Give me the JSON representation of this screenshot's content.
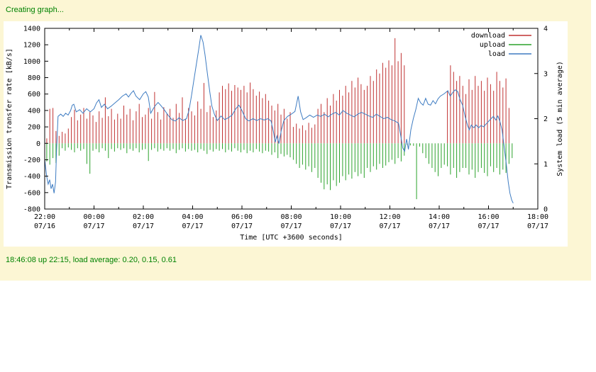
{
  "page": {
    "creating_text": "Creating graph...",
    "status_text": "18:46:08 up 22:15, load average: 0.20, 0.15, 0.61",
    "colors": {
      "panel_bg": "#FCF6D4",
      "text_green": "#008200",
      "axis": "#000000",
      "plot_bg": "#FFFFFF"
    }
  },
  "chart_data": {
    "type": "bar+line",
    "title": "",
    "xlabel": "Time [UTC +3600 seconds]",
    "ylabel_left": "Transmission transfer rate [kB/s]",
    "ylabel_right": "System load (5 min average)",
    "ylim_left": [
      -800,
      1400
    ],
    "ylim_right": [
      0,
      4
    ],
    "y_ticks_left": [
      -800,
      -600,
      -400,
      -200,
      0,
      200,
      400,
      600,
      800,
      1000,
      1200,
      1400
    ],
    "y_ticks_right": [
      0,
      1,
      2,
      3,
      4
    ],
    "x_hours_span": 20,
    "grid": false,
    "legend_position": "top-right-inside",
    "x_ticks": [
      {
        "hour": 0,
        "time": "22:00",
        "date": "07/16"
      },
      {
        "hour": 2,
        "time": "00:00",
        "date": "07/17"
      },
      {
        "hour": 4,
        "time": "02:00",
        "date": "07/17"
      },
      {
        "hour": 6,
        "time": "04:00",
        "date": "07/17"
      },
      {
        "hour": 8,
        "time": "06:00",
        "date": "07/17"
      },
      {
        "hour": 10,
        "time": "08:00",
        "date": "07/17"
      },
      {
        "hour": 12,
        "time": "10:00",
        "date": "07/17"
      },
      {
        "hour": 14,
        "time": "12:00",
        "date": "07/17"
      },
      {
        "hour": 16,
        "time": "14:00",
        "date": "07/17"
      },
      {
        "hour": 18,
        "time": "16:00",
        "date": "07/17"
      },
      {
        "hour": 20,
        "time": "18:00",
        "date": "07/17"
      }
    ],
    "x_minor_ticks_every_hours": 1,
    "legend": [
      {
        "name": "download",
        "color": "#C03232"
      },
      {
        "name": "upload",
        "color": "#2CA22C"
      },
      {
        "name": "load",
        "color": "#3E7CC2"
      }
    ],
    "series": {
      "download_kBs": {
        "axis": "left",
        "style": "impulses",
        "t0": 0.083,
        "dt": 0.125,
        "values": [
          60,
          420,
          430,
          150,
          90,
          140,
          120,
          180,
          320,
          410,
          280,
          350,
          430,
          300,
          380,
          340,
          260,
          390,
          310,
          560,
          330,
          420,
          290,
          360,
          300,
          460,
          350,
          420,
          280,
          390,
          480,
          320,
          350,
          430,
          300,
          625,
          380,
          290,
          440,
          360,
          420,
          310,
          480,
          370,
          560,
          300,
          430,
          390,
          340,
          510,
          420,
          735,
          380,
          460,
          320,
          400,
          620,
          700,
          660,
          730,
          640,
          710,
          680,
          650,
          700,
          620,
          740,
          660,
          580,
          630,
          550,
          600,
          520,
          460,
          400,
          480,
          350,
          420,
          300,
          380,
          200,
          240,
          180,
          220,
          160,
          250,
          190,
          230,
          420,
          480,
          380,
          550,
          460,
          600,
          520,
          650,
          580,
          700,
          620,
          760,
          680,
          800,
          720,
          650,
          700,
          820,
          760,
          900,
          850,
          980,
          920,
          1010,
          950,
          1280,
          1000,
          1100,
          950,
          null,
          null,
          null,
          null,
          null,
          null,
          null,
          null,
          null,
          null,
          null,
          null,
          null,
          640,
          950,
          870,
          760,
          820,
          700,
          600,
          780,
          650,
          820,
          700,
          760,
          640,
          800,
          720,
          640,
          870,
          760,
          680,
          790,
          430
        ]
      },
      "upload_kBs": {
        "axis": "left",
        "style": "impulses",
        "t0": 0.083,
        "dt": 0.125,
        "values": [
          -220,
          -260,
          -180,
          -240,
          -150,
          -60,
          -90,
          -50,
          -80,
          -110,
          -60,
          -90,
          -70,
          -250,
          -370,
          -90,
          -70,
          -110,
          -60,
          -90,
          -180,
          -70,
          -100,
          -60,
          -80,
          -60,
          -120,
          -70,
          -90,
          -60,
          -110,
          -80,
          -70,
          -215,
          -80,
          -60,
          -100,
          -70,
          -90,
          -60,
          -90,
          -70,
          -120,
          -80,
          -60,
          -100,
          -70,
          -90,
          -80,
          -110,
          -70,
          -90,
          -130,
          -80,
          -100,
          -70,
          -90,
          -70,
          -110,
          -80,
          -100,
          -60,
          -90,
          -110,
          -80,
          -120,
          -90,
          -110,
          -70,
          -100,
          -120,
          -90,
          -100,
          -140,
          -110,
          -180,
          -130,
          -160,
          -140,
          -170,
          -200,
          -250,
          -300,
          -260,
          -320,
          -280,
          -350,
          -300,
          -420,
          -480,
          -560,
          -500,
          -570,
          -450,
          -520,
          -480,
          -400,
          -450,
          -380,
          -430,
          -350,
          -400,
          -370,
          -420,
          -300,
          -350,
          -280,
          -320,
          -250,
          -300,
          -270,
          -230,
          -200,
          -250,
          -180,
          -220,
          -150,
          -20,
          -25,
          -30,
          -680,
          -40,
          -120,
          -180,
          -250,
          -300,
          -350,
          -400,
          -300,
          -260,
          -280,
          -380,
          -300,
          -420,
          -350,
          -300,
          -300,
          -380,
          -320,
          -420,
          -350,
          -300,
          -360,
          -400,
          -280,
          -350,
          -300,
          -380,
          -320,
          -360,
          -250,
          -180
        ]
      },
      "load_5min": {
        "axis": "right",
        "style": "line",
        "points": [
          [
            0,
            1.1
          ],
          [
            0.08,
            0.72
          ],
          [
            0.14,
            0.55
          ],
          [
            0.2,
            0.65
          ],
          [
            0.26,
            0.45
          ],
          [
            0.32,
            0.55
          ],
          [
            0.38,
            0.35
          ],
          [
            0.44,
            0.6
          ],
          [
            0.48,
            1.3
          ],
          [
            0.54,
            2.05
          ],
          [
            0.65,
            2.1
          ],
          [
            0.75,
            2.05
          ],
          [
            0.85,
            2.12
          ],
          [
            0.95,
            2.08
          ],
          [
            1.05,
            2.18
          ],
          [
            1.12,
            2.3
          ],
          [
            1.18,
            2.32
          ],
          [
            1.28,
            2.15
          ],
          [
            1.42,
            2.2
          ],
          [
            1.55,
            2.12
          ],
          [
            1.7,
            2.22
          ],
          [
            1.85,
            2.15
          ],
          [
            2.0,
            2.22
          ],
          [
            2.1,
            2.35
          ],
          [
            2.2,
            2.42
          ],
          [
            2.3,
            2.25
          ],
          [
            2.42,
            2.32
          ],
          [
            2.55,
            2.22
          ],
          [
            2.7,
            2.28
          ],
          [
            2.85,
            2.35
          ],
          [
            3.0,
            2.42
          ],
          [
            3.15,
            2.5
          ],
          [
            3.3,
            2.55
          ],
          [
            3.4,
            2.48
          ],
          [
            3.5,
            2.56
          ],
          [
            3.6,
            2.62
          ],
          [
            3.7,
            2.5
          ],
          [
            3.85,
            2.42
          ],
          [
            4.0,
            2.55
          ],
          [
            4.1,
            2.6
          ],
          [
            4.2,
            2.48
          ],
          [
            4.3,
            2.12
          ],
          [
            4.4,
            2.22
          ],
          [
            4.5,
            2.3
          ],
          [
            4.6,
            2.36
          ],
          [
            4.7,
            2.3
          ],
          [
            4.85,
            2.2
          ],
          [
            5.0,
            2.08
          ],
          [
            5.15,
            1.98
          ],
          [
            5.3,
            1.95
          ],
          [
            5.45,
            2.02
          ],
          [
            5.6,
            1.96
          ],
          [
            5.75,
            2.0
          ],
          [
            5.85,
            2.18
          ],
          [
            5.95,
            2.5
          ],
          [
            6.05,
            2.85
          ],
          [
            6.15,
            3.2
          ],
          [
            6.25,
            3.55
          ],
          [
            6.33,
            3.85
          ],
          [
            6.42,
            3.7
          ],
          [
            6.5,
            3.42
          ],
          [
            6.6,
            3.0
          ],
          [
            6.7,
            2.58
          ],
          [
            6.78,
            2.28
          ],
          [
            6.88,
            2.1
          ],
          [
            7.0,
            1.96
          ],
          [
            7.15,
            2.06
          ],
          [
            7.3,
            1.98
          ],
          [
            7.45,
            2.02
          ],
          [
            7.6,
            2.08
          ],
          [
            7.75,
            2.22
          ],
          [
            7.88,
            2.3
          ],
          [
            8.0,
            2.18
          ],
          [
            8.15,
            2.0
          ],
          [
            8.28,
            1.95
          ],
          [
            8.45,
            2.0
          ],
          [
            8.6,
            1.96
          ],
          [
            8.75,
            2.0
          ],
          [
            8.9,
            1.97
          ],
          [
            9.05,
            2.0
          ],
          [
            9.18,
            1.95
          ],
          [
            9.28,
            1.7
          ],
          [
            9.35,
            1.48
          ],
          [
            9.42,
            1.62
          ],
          [
            9.5,
            1.45
          ],
          [
            9.6,
            1.75
          ],
          [
            9.7,
            1.96
          ],
          [
            9.85,
            2.05
          ],
          [
            10.0,
            2.1
          ],
          [
            10.15,
            2.16
          ],
          [
            10.28,
            2.5
          ],
          [
            10.38,
            2.15
          ],
          [
            10.48,
            1.98
          ],
          [
            10.6,
            2.02
          ],
          [
            10.75,
            2.08
          ],
          [
            10.9,
            2.03
          ],
          [
            11.05,
            2.08
          ],
          [
            11.2,
            2.05
          ],
          [
            11.35,
            2.1
          ],
          [
            11.5,
            2.04
          ],
          [
            11.65,
            2.1
          ],
          [
            11.8,
            2.14
          ],
          [
            11.95,
            2.08
          ],
          [
            12.1,
            2.18
          ],
          [
            12.25,
            2.12
          ],
          [
            12.4,
            2.08
          ],
          [
            12.55,
            2.04
          ],
          [
            12.7,
            2.1
          ],
          [
            12.85,
            2.14
          ],
          [
            13.0,
            2.1
          ],
          [
            13.15,
            2.06
          ],
          [
            13.3,
            2.03
          ],
          [
            13.45,
            2.1
          ],
          [
            13.6,
            2.05
          ],
          [
            13.75,
            2.0
          ],
          [
            13.9,
            2.03
          ],
          [
            14.05,
            1.98
          ],
          [
            14.2,
            1.95
          ],
          [
            14.35,
            1.9
          ],
          [
            14.45,
            1.6
          ],
          [
            14.52,
            1.35
          ],
          [
            14.6,
            1.28
          ],
          [
            14.68,
            1.55
          ],
          [
            14.75,
            1.32
          ],
          [
            14.85,
            1.75
          ],
          [
            14.95,
            2.0
          ],
          [
            15.05,
            2.2
          ],
          [
            15.15,
            2.45
          ],
          [
            15.25,
            2.35
          ],
          [
            15.35,
            2.3
          ],
          [
            15.45,
            2.45
          ],
          [
            15.55,
            2.32
          ],
          [
            15.65,
            2.3
          ],
          [
            15.75,
            2.4
          ],
          [
            15.85,
            2.33
          ],
          [
            15.95,
            2.44
          ],
          [
            16.05,
            2.5
          ],
          [
            16.2,
            2.55
          ],
          [
            16.35,
            2.62
          ],
          [
            16.45,
            2.5
          ],
          [
            16.55,
            2.58
          ],
          [
            16.65,
            2.64
          ],
          [
            16.75,
            2.6
          ],
          [
            16.85,
            2.42
          ],
          [
            16.95,
            2.3
          ],
          [
            17.05,
            2.05
          ],
          [
            17.15,
            1.85
          ],
          [
            17.22,
            1.75
          ],
          [
            17.3,
            1.86
          ],
          [
            17.4,
            1.8
          ],
          [
            17.5,
            1.86
          ],
          [
            17.6,
            1.8
          ],
          [
            17.7,
            1.85
          ],
          [
            17.8,
            1.82
          ],
          [
            17.9,
            1.88
          ],
          [
            18.0,
            1.94
          ],
          [
            18.1,
            2.0
          ],
          [
            18.2,
            2.05
          ],
          [
            18.3,
            1.97
          ],
          [
            18.38,
            2.06
          ],
          [
            18.46,
            1.94
          ],
          [
            18.55,
            1.75
          ],
          [
            18.63,
            1.4
          ],
          [
            18.72,
            1.0
          ],
          [
            18.8,
            0.6
          ],
          [
            18.87,
            0.35
          ],
          [
            18.94,
            0.2
          ],
          [
            19.0,
            0.13
          ]
        ]
      }
    }
  }
}
